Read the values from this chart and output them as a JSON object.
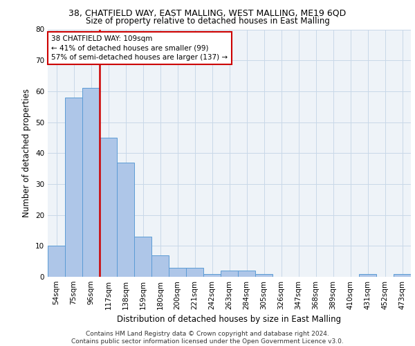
{
  "title_line1": "38, CHATFIELD WAY, EAST MALLING, WEST MALLING, ME19 6QD",
  "title_line2": "Size of property relative to detached houses in East Malling",
  "xlabel": "Distribution of detached houses by size in East Malling",
  "ylabel": "Number of detached properties",
  "bar_categories": [
    "54sqm",
    "75sqm",
    "96sqm",
    "117sqm",
    "138sqm",
    "159sqm",
    "180sqm",
    "200sqm",
    "221sqm",
    "242sqm",
    "263sqm",
    "284sqm",
    "305sqm",
    "326sqm",
    "347sqm",
    "368sqm",
    "389sqm",
    "410sqm",
    "431sqm",
    "452sqm",
    "473sqm"
  ],
  "bar_values": [
    10,
    58,
    61,
    45,
    37,
    13,
    7,
    3,
    3,
    1,
    2,
    2,
    1,
    0,
    0,
    0,
    0,
    0,
    1,
    0,
    1
  ],
  "bar_color": "#aec6e8",
  "bar_edge_color": "#5b9bd5",
  "annotation_box_text": "38 CHATFIELD WAY: 109sqm\n← 41% of detached houses are smaller (99)\n57% of semi-detached houses are larger (137) →",
  "vline_color": "#cc0000",
  "vline_x_idx": 2.5,
  "ylim": [
    0,
    80
  ],
  "yticks": [
    0,
    10,
    20,
    30,
    40,
    50,
    60,
    70,
    80
  ],
  "grid_color": "#c8d8e8",
  "background_color": "#eef3f8",
  "footer_text": "Contains HM Land Registry data © Crown copyright and database right 2024.\nContains public sector information licensed under the Open Government Licence v3.0.",
  "title_fontsize": 9,
  "subtitle_fontsize": 8.5,
  "xlabel_fontsize": 8.5,
  "ylabel_fontsize": 8.5,
  "tick_fontsize": 7.5,
  "annotation_fontsize": 7.5,
  "footer_fontsize": 6.5
}
